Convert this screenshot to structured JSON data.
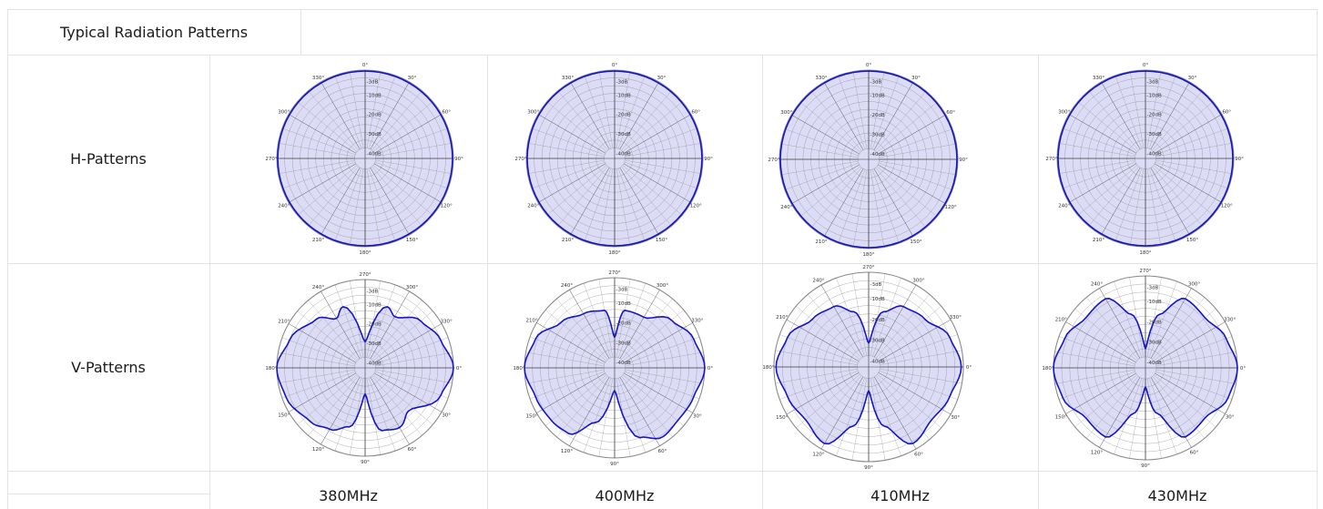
{
  "table": {
    "title": "Typical Radiation Patterns",
    "rows": [
      "H-Patterns",
      "V-Patterns"
    ],
    "frequencies": [
      "380MHz",
      "400MHz",
      "410MHz",
      "430MHz"
    ]
  },
  "polar": {
    "db_labels": [
      "-3dB",
      "-10dB",
      "-20dB",
      "-30dB",
      "-40dB"
    ],
    "h_angle_labels": [
      "0°",
      "30°",
      "60°",
      "90°",
      "120°",
      "150°",
      "180°",
      "210°",
      "240°",
      "270°",
      "300°",
      "330°"
    ],
    "v_angle_labels": [
      "270°",
      "300°",
      "330°",
      "0°",
      "30°",
      "60°",
      "90°",
      "120°",
      "150°",
      "180°",
      "210°",
      "240°"
    ]
  },
  "colors": {
    "trace": "#1515c8",
    "fill": "#dcdcf7",
    "grid": "#8a8a8a"
  },
  "chart_data": [
    {
      "type": "polar",
      "row": "H-Patterns",
      "frequency": "380MHz",
      "radial_range_db": [
        -40,
        0
      ],
      "pattern": "omnidirectional",
      "level_db": 0
    },
    {
      "type": "polar",
      "row": "H-Patterns",
      "frequency": "400MHz",
      "radial_range_db": [
        -40,
        0
      ],
      "pattern": "omnidirectional",
      "level_db": 0
    },
    {
      "type": "polar",
      "row": "H-Patterns",
      "frequency": "410MHz",
      "radial_range_db": [
        -40,
        0
      ],
      "pattern": "omnidirectional",
      "level_db": 0
    },
    {
      "type": "polar",
      "row": "H-Patterns",
      "frequency": "430MHz",
      "radial_range_db": [
        -40,
        0
      ],
      "pattern": "omnidirectional",
      "level_db": 0
    },
    {
      "type": "polar",
      "row": "V-Patterns",
      "frequency": "380MHz",
      "radial_range_db": [
        -40,
        0
      ],
      "angles_deg": [
        0,
        20,
        45,
        60,
        75,
        90,
        105,
        120,
        135,
        160,
        180,
        200,
        225,
        240,
        250,
        270,
        290,
        300,
        320,
        340
      ],
      "gain_db": [
        0,
        -4,
        -14,
        -10,
        -12,
        -32,
        -14,
        -9,
        -6,
        -2,
        0,
        -4,
        -10,
        -16,
        -12,
        -32,
        -12,
        -15,
        -8,
        -4
      ]
    },
    {
      "type": "polar",
      "row": "V-Patterns",
      "frequency": "400MHz",
      "radial_range_db": [
        -40,
        0
      ],
      "angles_deg": [
        0,
        20,
        40,
        55,
        70,
        90,
        110,
        125,
        140,
        160,
        180,
        200,
        220,
        240,
        260,
        270,
        280,
        300,
        320,
        340
      ],
      "gain_db": [
        0,
        -3,
        -4,
        -3,
        -8,
        -34,
        -16,
        -5,
        -4,
        -3,
        0,
        -3,
        -10,
        -14,
        -16,
        -30,
        -16,
        -16,
        -8,
        -3
      ]
    },
    {
      "type": "polar",
      "row": "V-Patterns",
      "frequency": "410MHz",
      "radial_range_db": [
        -40,
        0
      ],
      "angles_deg": [
        0,
        20,
        40,
        60,
        75,
        90,
        105,
        120,
        140,
        160,
        180,
        200,
        220,
        240,
        255,
        270,
        285,
        300,
        320,
        340
      ],
      "gain_db": [
        -1,
        -4,
        -6,
        -3,
        -16,
        -34,
        -16,
        -3,
        -6,
        -4,
        -1,
        -4,
        -10,
        -12,
        -18,
        -34,
        -18,
        -12,
        -10,
        -4
      ]
    },
    {
      "type": "polar",
      "row": "V-Patterns",
      "frequency": "430MHz",
      "radial_range_db": [
        -40,
        0
      ],
      "angles_deg": [
        0,
        20,
        40,
        60,
        75,
        90,
        105,
        120,
        140,
        160,
        180,
        200,
        220,
        240,
        255,
        270,
        285,
        300,
        320,
        340
      ],
      "gain_db": [
        0,
        -2,
        -7,
        -6,
        -22,
        -36,
        -22,
        -6,
        -7,
        -2,
        0,
        -3,
        -7,
        -6,
        -18,
        -36,
        -18,
        -6,
        -7,
        -3
      ]
    }
  ]
}
